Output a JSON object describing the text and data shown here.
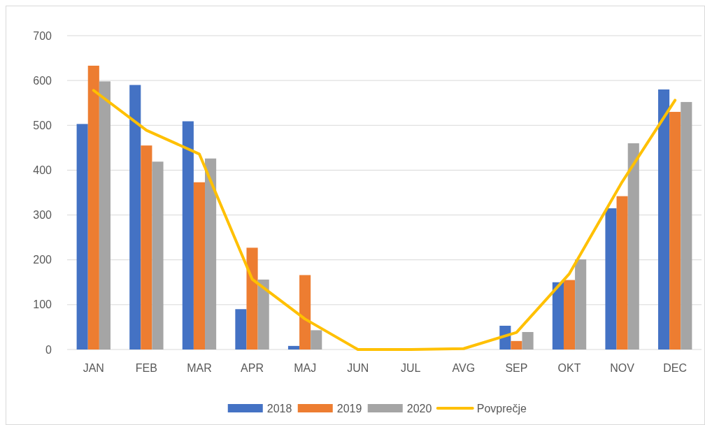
{
  "chart_data": {
    "type": "bar",
    "categories": [
      "JAN",
      "FEB",
      "MAR",
      "APR",
      "MAJ",
      "JUN",
      "JUL",
      "AVG",
      "SEP",
      "OKT",
      "NOV",
      "DEC"
    ],
    "series": [
      {
        "name": "2018",
        "color": "#4472c4",
        "values": [
          503,
          590,
          509,
          90,
          8,
          0,
          0,
          0,
          53,
          150,
          315,
          580
        ]
      },
      {
        "name": "2019",
        "color": "#ed7d31",
        "values": [
          633,
          455,
          373,
          227,
          166,
          0,
          0,
          0,
          19,
          155,
          342,
          530
        ]
      },
      {
        "name": "2020",
        "color": "#a5a5a5",
        "values": [
          598,
          419,
          426,
          156,
          43,
          0,
          0,
          0,
          39,
          201,
          460,
          552
        ]
      },
      {
        "name": "Povprečje",
        "type": "line",
        "color": "#ffc000",
        "values": [
          578,
          489,
          436,
          157,
          68,
          0,
          0,
          2,
          38,
          169,
          374,
          556
        ]
      }
    ],
    "ylim": [
      0,
      700
    ],
    "yticks": [
      0,
      100,
      200,
      300,
      400,
      500,
      600,
      700
    ],
    "grid": "y",
    "legend": "bottom"
  }
}
